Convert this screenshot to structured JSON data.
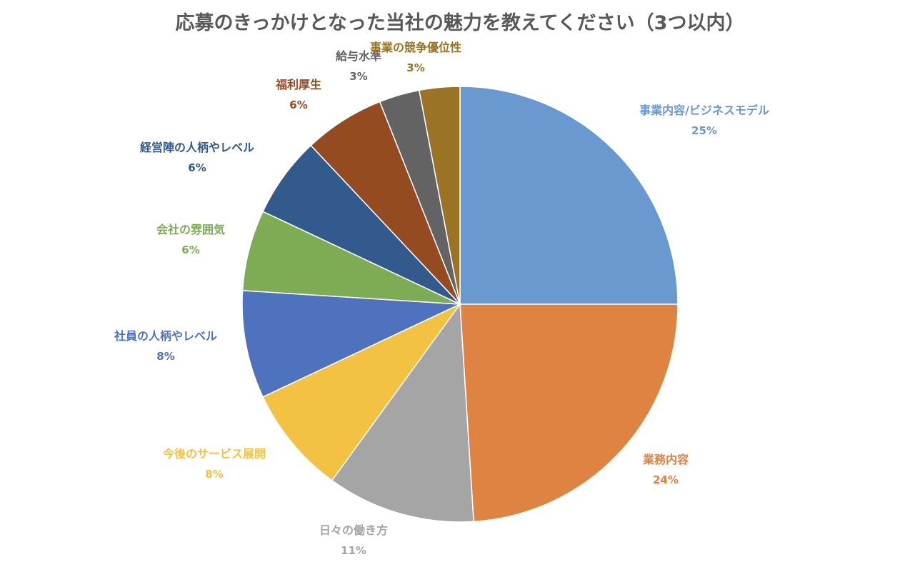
{
  "chart_data": {
    "type": "pie",
    "title": "応募のきっかけとなった当社の魅力を教えてください（3つ以内）",
    "slices": [
      {
        "label": "事業内容/ビジネスモデル",
        "pct_label": "25%",
        "value": 25,
        "color": "#6a99cf"
      },
      {
        "label": "業務内容",
        "pct_label": "24%",
        "value": 24,
        "color": "#df8343"
      },
      {
        "label": "日々の働き方",
        "pct_label": "11%",
        "value": 11,
        "color": "#a5a5a5"
      },
      {
        "label": "今後のサービス展開",
        "pct_label": "8%",
        "value": 8,
        "color": "#f3c242"
      },
      {
        "label": "社員の人柄やレベル",
        "pct_label": "8%",
        "value": 8,
        "color": "#4f72be"
      },
      {
        "label": "会社の雰囲気",
        "pct_label": "6%",
        "value": 6,
        "color": "#7eac55"
      },
      {
        "label": "経営陣の人柄やレベル",
        "pct_label": "6%",
        "value": 6,
        "color": "#335a8c"
      },
      {
        "label": "福利厚生",
        "pct_label": "6%",
        "value": 6,
        "color": "#954b20"
      },
      {
        "label": "給与水準",
        "pct_label": "3%",
        "value": 3,
        "color": "#636363"
      },
      {
        "label": "事業の競争優位性",
        "pct_label": "3%",
        "value": 3,
        "color": "#9a7324"
      }
    ],
    "legend": "none",
    "data_labels": "outside"
  }
}
